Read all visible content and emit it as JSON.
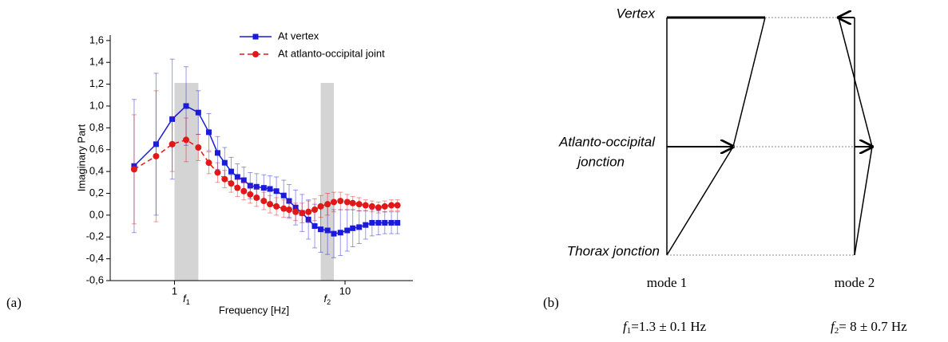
{
  "chart_data": {
    "type": "line",
    "panel_label": "(a)",
    "x_label": "Frequency [Hz]",
    "y_label": "Imaginary Part",
    "x": [
      0.58,
      0.78,
      0.97,
      1.17,
      1.38,
      1.59,
      1.79,
      1.97,
      2.15,
      2.34,
      2.55,
      2.78,
      3.03,
      3.34,
      3.63,
      3.96,
      4.37,
      4.7,
      5.13,
      5.6,
      6.1,
      6.64,
      7.2,
      7.9,
      8.6,
      9.4,
      10.3,
      11.1,
      12.1,
      13.2,
      14.4,
      15.7,
      17.1,
      18.7,
      20.3
    ],
    "xscale": "log",
    "xlim": [
      0.42,
      25
    ],
    "xticks": [
      1,
      10
    ],
    "ylim": [
      -0.6,
      1.65
    ],
    "yticks": [
      {
        "value": -0.6,
        "label": "-0,6"
      },
      {
        "value": -0.4,
        "label": "-0,4"
      },
      {
        "value": -0.2,
        "label": "-0,2"
      },
      {
        "value": 0,
        "label": "0,0"
      },
      {
        "value": 0.2,
        "label": "0,2"
      },
      {
        "value": 0.4,
        "label": "0,4"
      },
      {
        "value": 0.6,
        "label": "0,6"
      },
      {
        "value": 0.8,
        "label": "0,8"
      },
      {
        "value": 1.0,
        "label": "1,0"
      },
      {
        "value": 1.2,
        "label": "1,2"
      },
      {
        "value": 1.4,
        "label": "1,4"
      },
      {
        "value": 1.6,
        "label": "1,6"
      }
    ],
    "shades": [
      {
        "from": 1.0,
        "to": 1.38,
        "symbol": "f",
        "subscript": "1"
      },
      {
        "from": 7.2,
        "to": 8.6,
        "symbol": "f",
        "subscript": "2"
      }
    ],
    "shade_color": "#d4d4d4",
    "series": [
      {
        "name": "At vertex",
        "color": "#1a1adc",
        "marker": "square",
        "linestyle": "solid",
        "values": [
          0.45,
          0.65,
          0.88,
          1.0,
          0.94,
          0.76,
          0.57,
          0.48,
          0.4,
          0.35,
          0.32,
          0.27,
          0.26,
          0.25,
          0.24,
          0.22,
          0.18,
          0.13,
          0.07,
          0.02,
          -0.04,
          -0.1,
          -0.13,
          -0.14,
          -0.17,
          -0.16,
          -0.14,
          -0.12,
          -0.11,
          -0.09,
          -0.07,
          -0.07,
          -0.07,
          -0.07,
          -0.07
        ],
        "errors": [
          0.61,
          0.65,
          0.55,
          0.36,
          0.2,
          0.17,
          0.15,
          0.14,
          0.13,
          0.12,
          0.12,
          0.12,
          0.12,
          0.12,
          0.12,
          0.13,
          0.14,
          0.15,
          0.16,
          0.17,
          0.18,
          0.2,
          0.21,
          0.22,
          0.22,
          0.21,
          0.19,
          0.17,
          0.15,
          0.13,
          0.12,
          0.11,
          0.1,
          0.1,
          0.1
        ]
      },
      {
        "name": "At atlanto-occipital joint",
        "color": "#e01818",
        "marker": "circle",
        "linestyle": "dashed",
        "values": [
          0.42,
          0.54,
          0.65,
          0.69,
          0.62,
          0.48,
          0.39,
          0.33,
          0.29,
          0.25,
          0.22,
          0.19,
          0.16,
          0.13,
          0.1,
          0.08,
          0.06,
          0.05,
          0.03,
          0.02,
          0.03,
          0.05,
          0.08,
          0.1,
          0.12,
          0.13,
          0.12,
          0.11,
          0.1,
          0.09,
          0.08,
          0.07,
          0.08,
          0.09,
          0.09
        ],
        "errors": [
          0.5,
          0.6,
          0.25,
          0.2,
          0.12,
          0.1,
          0.09,
          0.08,
          0.08,
          0.08,
          0.08,
          0.08,
          0.08,
          0.08,
          0.08,
          0.08,
          0.08,
          0.08,
          0.08,
          0.09,
          0.1,
          0.1,
          0.1,
          0.1,
          0.09,
          0.08,
          0.07,
          0.06,
          0.06,
          0.05,
          0.05,
          0.05,
          0.05,
          0.05,
          0.05
        ]
      }
    ]
  },
  "panel_b": {
    "label": "(b)",
    "levels": {
      "top": "Vertex",
      "middle": [
        "Atlanto-occipital",
        "jonction"
      ],
      "bottom": "Thorax jonction"
    },
    "modes": [
      "mode 1",
      "mode 2"
    ],
    "frequencies": [
      {
        "symbol": "f",
        "subscript": "1",
        "text": "=1.3 ± 0.1 Hz"
      },
      {
        "symbol": "f",
        "subscript": "2",
        "text": "= 8 ± 0.7 Hz"
      }
    ]
  }
}
